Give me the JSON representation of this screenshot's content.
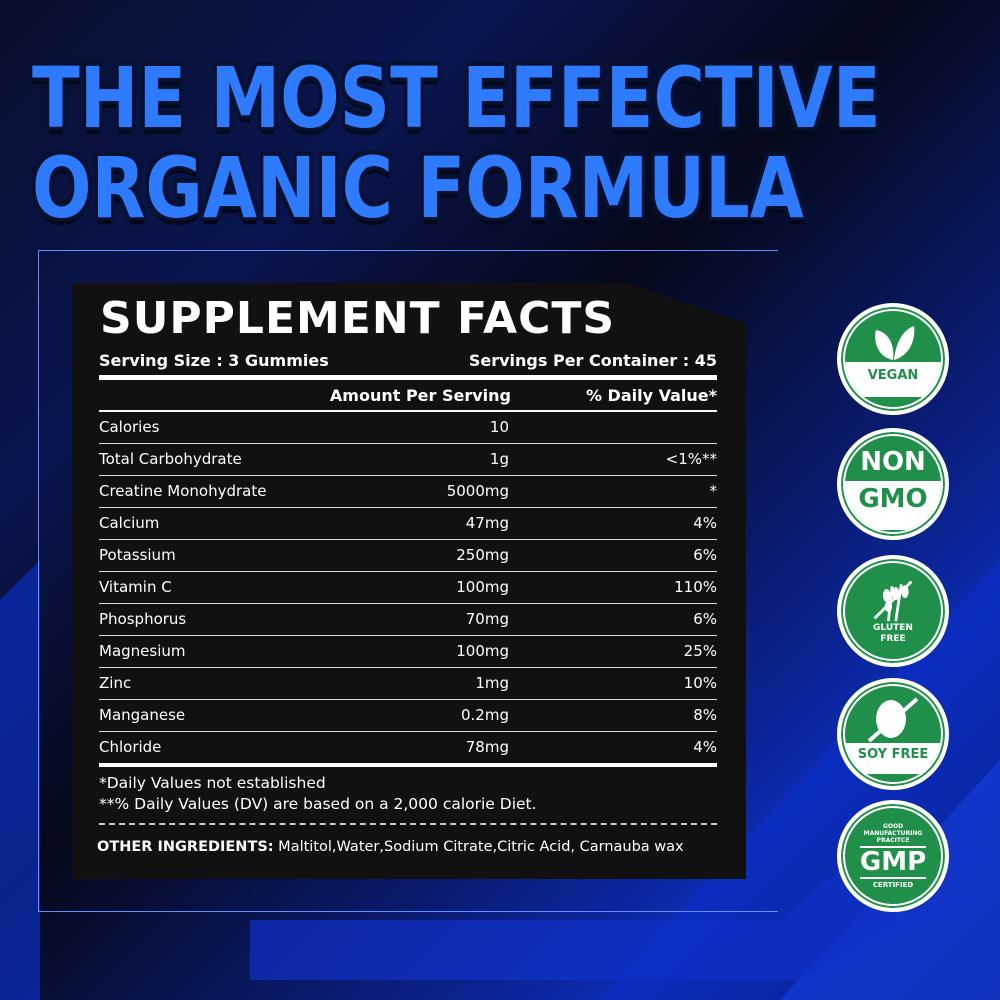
{
  "headline": {
    "line1": "THE MOST EFFECTIVE",
    "line2": "ORGANIC FORMULA"
  },
  "facts": {
    "title": "SUPPLEMENT FACTS",
    "serving_size": "Serving Size : 3 Gummies",
    "servings_per_container": "Servings Per Container : 45",
    "col_amount": "Amount Per Serving",
    "col_dv": "% Daily Value*",
    "rows": [
      {
        "name": "Calories",
        "amount": "10",
        "dv": ""
      },
      {
        "name": "Total Carbohydrate",
        "amount": "1g",
        "dv": "<1%**"
      },
      {
        "name": "Creatine Monohydrate",
        "amount": "5000mg",
        "dv": "*"
      },
      {
        "name": "Calcium",
        "amount": "47mg",
        "dv": "4%"
      },
      {
        "name": "Potassium",
        "amount": "250mg",
        "dv": "6%"
      },
      {
        "name": "Vitamin C",
        "amount": "100mg",
        "dv": "110%"
      },
      {
        "name": "Phosphorus",
        "amount": "70mg",
        "dv": "6%"
      },
      {
        "name": "Magnesium",
        "amount": "100mg",
        "dv": "25%"
      },
      {
        "name": "Zinc",
        "amount": "1mg",
        "dv": "10%"
      },
      {
        "name": "Manganese",
        "amount": "0.2mg",
        "dv": "8%"
      },
      {
        "name": "Chloride",
        "amount": "78mg",
        "dv": "4%"
      }
    ],
    "note1": "*Daily Values not established",
    "note2": "**% Daily Values (DV) are based on a 2,000 calorie Diet.",
    "other_label": "OTHER INGREDIENTS:",
    "other_value": " Maltitol,Water,Sodium Citrate,Citric Acid, Carnauba wax"
  },
  "badges": {
    "vegan": "VEGAN",
    "non": "NON",
    "gmo": "GMO",
    "gluten": "GLUTEN",
    "free": "FREE",
    "soy": "SOY FREE",
    "gmp": "GMP",
    "gmp_top": "GOOD MANUFACTURING PRACITCE",
    "gmp_bottom": "CERTIFIED"
  },
  "colors": {
    "badge_green": "#1f8f4a",
    "title_blue": "#2f7bff"
  }
}
